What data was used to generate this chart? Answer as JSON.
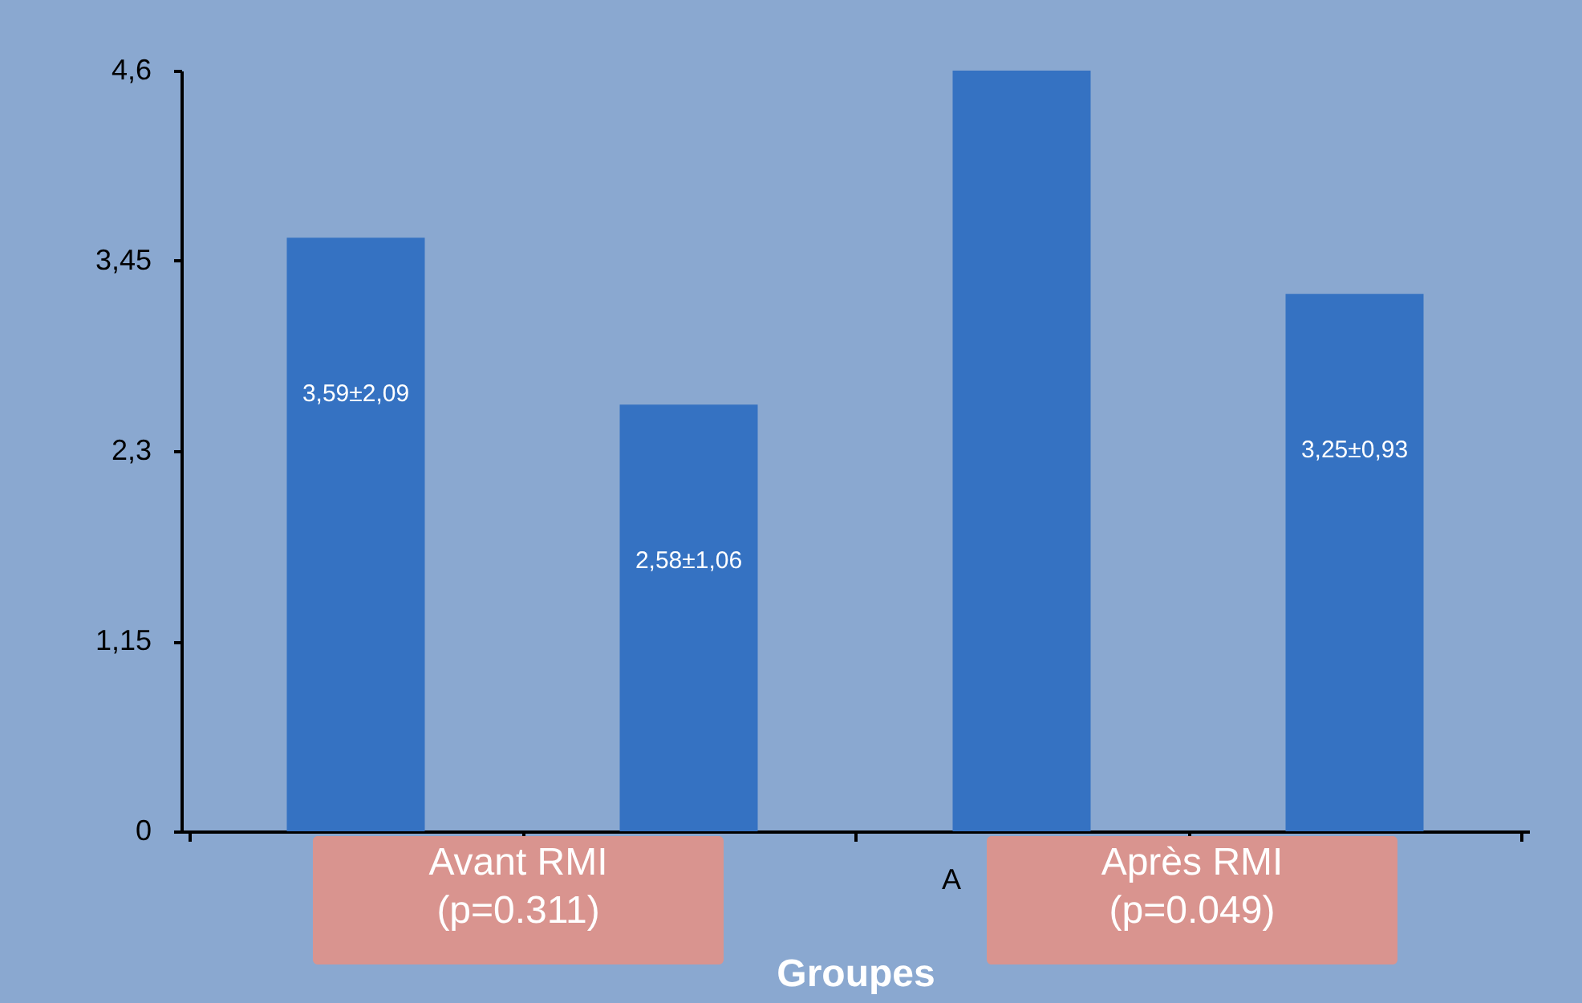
{
  "chart_data": {
    "type": "bar",
    "xlabel": "Groupes",
    "categories": [
      null,
      null,
      null,
      null
    ],
    "values": [
      3.59,
      2.58,
      4.6,
      3.25
    ],
    "value_labels": [
      "3,59±2,09",
      "2,58±1,06",
      null,
      "3,25±0,93"
    ],
    "color": "#3572c2",
    "ylim": [
      0,
      4.6
    ],
    "yticks": [
      {
        "value": 0,
        "label": "0"
      },
      {
        "value": 1.15,
        "label": "1,15"
      },
      {
        "value": 2.3,
        "label": "2,3"
      },
      {
        "value": 3.45,
        "label": "3,45"
      },
      {
        "value": 4.6,
        "label": "4,6"
      }
    ],
    "grid": false,
    "annotations": [
      "Avant RMI\n(p=0.311)",
      "A",
      "Après RMI\n(p=0.049)"
    ]
  }
}
